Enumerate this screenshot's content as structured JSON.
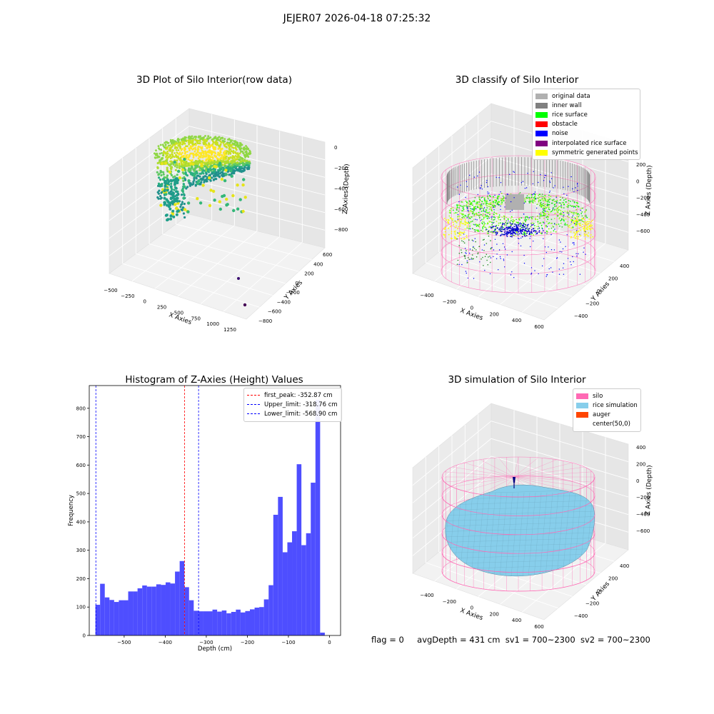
{
  "suptitle": "JEJER07 2026-04-18 07:25:32",
  "colors": {
    "histogram_bar": "#4444ff",
    "first_peak": "#ff0000",
    "limits": "#0000ff",
    "silo": "#ff69b4",
    "rice": "#87ceeb"
  },
  "chart_data": [
    {
      "type": "scatter",
      "title": "3D Plot of Silo Interior(row data)",
      "projection": "3d",
      "xlabel": "X Axies",
      "ylabel": "Y Axies",
      "zlabel": "Z Axies (Depth)",
      "x_ticks": [
        "−500",
        "−250",
        "0",
        "250",
        "500",
        "750",
        "1000",
        "1250"
      ],
      "y_ticks": [
        "−800",
        "−600",
        "−400",
        "−200",
        "0",
        "200",
        "400",
        "600"
      ],
      "z_ticks": [
        "0",
        "−200",
        "−400",
        "−600",
        "−800"
      ],
      "colormap": "viridis",
      "outlier_points": [
        {
          "x": 1050,
          "y": -520,
          "z": -850
        },
        {
          "x": 1240,
          "y": -760,
          "z": -880
        }
      ]
    },
    {
      "type": "scatter",
      "title": "3D classify of Silo Interior",
      "projection": "3d",
      "xlabel": "X Axies",
      "ylabel": "Y Axies",
      "zlabel": "Z Axies (Depth)",
      "x_ticks": [
        "−400",
        "−200",
        "0",
        "200",
        "400",
        "600"
      ],
      "y_ticks": [
        "−400",
        "−200",
        "0",
        "200",
        "400"
      ],
      "z_ticks": [
        "200",
        "0",
        "−200",
        "−400",
        "−600"
      ],
      "legend": [
        {
          "label": "original data",
          "color": "#b0b0b0"
        },
        {
          "label": "inner wall",
          "color": "#808080"
        },
        {
          "label": "rice surface",
          "color": "#00ff00"
        },
        {
          "label": "obstacle",
          "color": "#ff0000"
        },
        {
          "label": "noise",
          "color": "#0000ff"
        },
        {
          "label": "interpolated rice surface",
          "color": "#800080"
        },
        {
          "label": "symmetric generated points",
          "color": "#ffff00"
        }
      ]
    },
    {
      "type": "bar",
      "title": "Histogram of Z-Axies (Height) Values",
      "xlabel": "Depth (cm)",
      "ylabel": "Frequency",
      "xlim": [
        -585,
        27
      ],
      "ylim": [
        0,
        880
      ],
      "x_ticks": [
        -500,
        -400,
        -300,
        -200,
        -100,
        0
      ],
      "x_tick_labels": [
        "−500",
        "−400",
        "−300",
        "−200",
        "−100",
        "0"
      ],
      "y_ticks": [
        0,
        100,
        200,
        300,
        400,
        500,
        600,
        700,
        800
      ],
      "bin_width": 11.4,
      "bin_start": -570,
      "values": [
        108,
        182,
        134,
        125,
        118,
        124,
        124,
        155,
        155,
        166,
        176,
        172,
        172,
        180,
        178,
        187,
        183,
        225,
        262,
        170,
        124,
        87,
        85,
        85,
        85,
        91,
        84,
        88,
        78,
        83,
        91,
        81,
        86,
        92,
        98,
        100,
        127,
        177,
        425,
        488,
        293,
        328,
        367,
        603,
        318,
        360,
        538,
        830,
        10
      ],
      "lines": [
        {
          "label": "first_peak: -352.87 cm",
          "value": -352.87,
          "color": "#ff0000"
        },
        {
          "label": "Upper_limit: -318.76 cm",
          "value": -318.76,
          "color": "#0000ff"
        },
        {
          "label": "Lower_limit: -568.90 cm",
          "value": -568.9,
          "color": "#0000ff"
        }
      ],
      "legend_position": "upper right"
    },
    {
      "type": "area",
      "title": "3D simulation of Silo Interior",
      "projection": "3d",
      "xlabel": "X Axies",
      "ylabel": "Y Axies",
      "zlabel": "Z Axies (Depth)",
      "x_ticks": [
        "−400",
        "−200",
        "0",
        "200",
        "400",
        "600"
      ],
      "y_ticks": [
        "−400",
        "−200",
        "0",
        "200",
        "400"
      ],
      "z_ticks": [
        "400",
        "200",
        "0",
        "−200",
        "−400",
        "−600"
      ],
      "legend": [
        {
          "label": "silo",
          "color": "#ff69b4"
        },
        {
          "label": "rice simulation",
          "color": "#87ceeb"
        },
        {
          "label": "auger",
          "color": "#ff4500"
        },
        {
          "label": "center(50,0)",
          "color": "none"
        }
      ]
    }
  ],
  "footer": {
    "flag": "flag = 0",
    "avg": "avgDepth = 431 cm",
    "sv1": "sv1 = 700~2300",
    "sv2": "sv2 = 700~2300"
  }
}
